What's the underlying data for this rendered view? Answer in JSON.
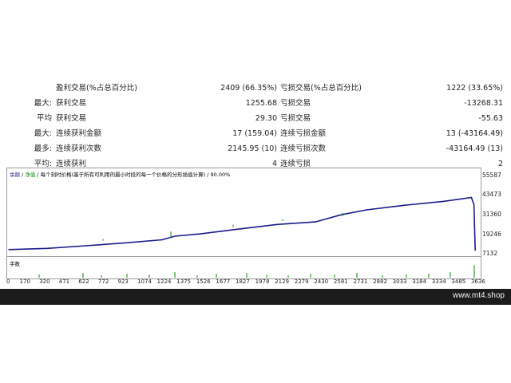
{
  "stats": [
    {
      "prefix": "",
      "label": "盈利交易(%占总百分比)",
      "value": "2409 (66.35%)",
      "label2": "亏损交易(%占总百分比)",
      "value2": "1222 (33.65%)"
    },
    {
      "prefix": "最大:",
      "label": "获利交易",
      "value": "1255.68",
      "label2": "亏损交易",
      "value2": "-13268.31"
    },
    {
      "prefix": "平均",
      "label": "获利交易",
      "value": "29.30",
      "label2": "亏损交易",
      "value2": "-55.63"
    },
    {
      "prefix": "最大:",
      "label": "连续获利金额",
      "value": "17 (159.04)",
      "label2": "连续亏损金额",
      "value2": "13 (-43164.49)"
    },
    {
      "prefix": "最多:",
      "label": "连续获利次数",
      "value": "2145.95 (10)",
      "label2": "连续亏损次数",
      "value2": "-43164.49 (13)"
    },
    {
      "prefix": "平均:",
      "label": "连续获利",
      "value": "4",
      "label2": "连续亏损",
      "value2": "2"
    }
  ],
  "chart": {
    "legend_balance": "余额",
    "legend_sep": " / ",
    "legend_equity": "净值",
    "legend_rest": " / 每个刻时价格(基于所有可利用的最小时段的每一个价格的分形插值计算) / 90.00%",
    "volume_label": "手数"
  },
  "chart_data": {
    "type": "line",
    "series": [
      {
        "name": "余额",
        "x": [
          0,
          300,
          600,
          900,
          1200,
          1300,
          1500,
          1800,
          2100,
          2400,
          2600,
          2800,
          3100,
          3400,
          3620,
          3640,
          3650
        ],
        "values": [
          7800,
          8600,
          10400,
          12200,
          14400,
          16800,
          18400,
          21600,
          24700,
          26400,
          31200,
          34500,
          37600,
          40200,
          42800,
          38000,
          7400
        ]
      }
    ],
    "xticks": [
      "0",
      "170",
      "320",
      "471",
      "622",
      "772",
      "923",
      "1074",
      "1224",
      "1375",
      "1526",
      "1677",
      "1827",
      "1978",
      "2129",
      "2279",
      "2430",
      "2581",
      "2731",
      "2882",
      "3033",
      "3184",
      "3334",
      "3485",
      "3636"
    ],
    "yticks": [
      "55587",
      "43473",
      "31360",
      "19246",
      "7132"
    ],
    "xlim": [
      0,
      3680
    ],
    "ylim": [
      4500,
      57000
    ],
    "colors": {
      "balance": "#1a1a8c",
      "equity": "#0a8a0a",
      "volume": "#0a8a0a"
    }
  },
  "footer": {
    "watermark": "www.mt4.shop"
  }
}
